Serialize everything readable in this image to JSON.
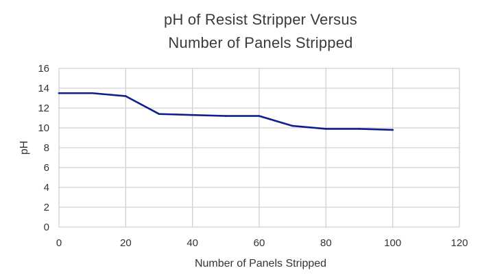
{
  "chart_data": {
    "type": "line",
    "title": "pH of Resist Stripper Versus Number of Panels Stripped",
    "title_lines": [
      "pH of Resist Stripper Versus",
      "Number of Panels Stripped"
    ],
    "xlabel": "Number of Panels Stripped",
    "ylabel": "pH",
    "xlim": [
      0,
      120
    ],
    "ylim": [
      0,
      16
    ],
    "x_ticks": [
      0,
      20,
      40,
      60,
      80,
      100,
      120
    ],
    "y_ticks": [
      0,
      2,
      4,
      6,
      8,
      10,
      12,
      14,
      16
    ],
    "grid": true,
    "legend": "none",
    "series": [
      {
        "x": [
          0,
          10,
          20,
          30,
          40,
          50,
          60,
          70,
          80,
          90,
          100
        ],
        "values": [
          13.5,
          13.5,
          13.2,
          11.4,
          11.3,
          11.2,
          11.2,
          10.2,
          9.9,
          9.9,
          9.8
        ],
        "color": "#0c1f8c"
      }
    ]
  },
  "colors": {
    "grid": "#d0d0d0",
    "text": "#333333",
    "line": "#0c1f8c"
  }
}
